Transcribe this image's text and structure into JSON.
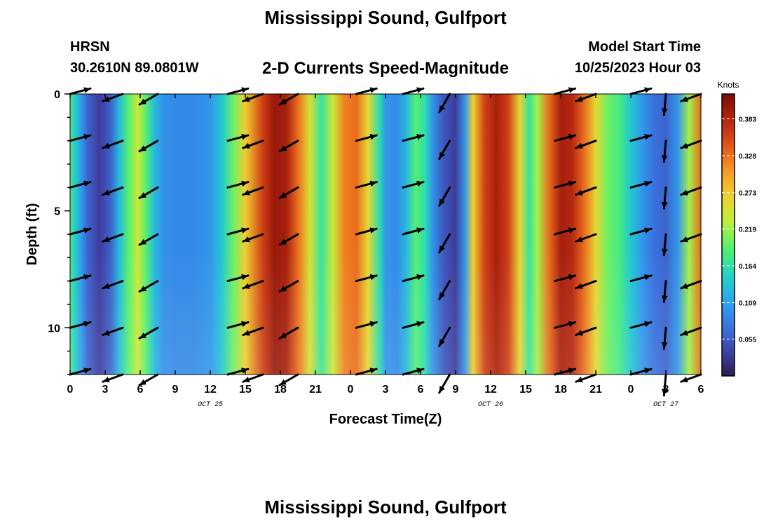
{
  "header": {
    "title": "Mississippi Sound, Gulfport",
    "station": "HRSN",
    "coords": "30.2610N  89.0801W",
    "plot_title": "2-D Currents Speed-Magnitude",
    "model_label": "Model Start Time",
    "model_time": "10/25/2023 Hour 03"
  },
  "footer": {
    "title": "Mississippi Sound, Gulfport"
  },
  "chart_data": {
    "type": "heatmap",
    "title": "2-D Currents Speed-Magnitude",
    "xlabel": "Forecast Time(Z)",
    "ylabel": "Depth (ft)",
    "x_ticks": [
      "0",
      "3",
      "6",
      "9",
      "12",
      "15",
      "18",
      "21",
      "0",
      "3",
      "6",
      "9",
      "12",
      "15",
      "18",
      "21",
      "0",
      "3",
      "6"
    ],
    "x_range_hours": [
      0,
      54
    ],
    "date_labels": [
      {
        "text": "OCT 25",
        "hour": 12
      },
      {
        "text": "OCT 26",
        "hour": 36
      },
      {
        "text": "OCT 27",
        "hour": 51
      }
    ],
    "y_ticks": [
      0,
      5,
      10
    ],
    "y_range_ft": [
      0,
      12
    ],
    "y_reversed": true,
    "colorbar": {
      "label": "Knots",
      "ticks": [
        "0.055",
        "0.109",
        "0.164",
        "0.219",
        "0.273",
        "0.328",
        "0.383"
      ],
      "range": [
        0.0,
        0.42
      ]
    },
    "speed_by_hour_knots": [
      {
        "hour": 0,
        "speed": 0.18
      },
      {
        "hour": 0.5,
        "speed": 0.14
      },
      {
        "hour": 1,
        "speed": 0.1
      },
      {
        "hour": 1.5,
        "speed": 0.06
      },
      {
        "hour": 2.5,
        "speed": 0.03
      },
      {
        "hour": 3.5,
        "speed": 0.06
      },
      {
        "hour": 4.2,
        "speed": 0.13
      },
      {
        "hour": 5,
        "speed": 0.19
      },
      {
        "hour": 5.8,
        "speed": 0.24
      },
      {
        "hour": 6.5,
        "speed": 0.19
      },
      {
        "hour": 7.2,
        "speed": 0.13
      },
      {
        "hour": 8,
        "speed": 0.095
      },
      {
        "hour": 9,
        "speed": 0.09
      },
      {
        "hour": 10.5,
        "speed": 0.09
      },
      {
        "hour": 12,
        "speed": 0.1
      },
      {
        "hour": 13,
        "speed": 0.14
      },
      {
        "hour": 14,
        "speed": 0.2
      },
      {
        "hour": 15,
        "speed": 0.27
      },
      {
        "hour": 16.5,
        "speed": 0.36
      },
      {
        "hour": 17.5,
        "speed": 0.4
      },
      {
        "hour": 18.5,
        "speed": 0.39
      },
      {
        "hour": 19.5,
        "speed": 0.33
      },
      {
        "hour": 20.5,
        "speed": 0.25
      },
      {
        "hour": 21.5,
        "speed": 0.17
      },
      {
        "hour": 22.5,
        "speed": 0.24
      },
      {
        "hour": 23.5,
        "speed": 0.32
      },
      {
        "hour": 24.5,
        "speed": 0.33
      },
      {
        "hour": 25.5,
        "speed": 0.26
      },
      {
        "hour": 26.5,
        "speed": 0.16
      },
      {
        "hour": 27,
        "speed": 0.1
      },
      {
        "hour": 28,
        "speed": 0.09
      },
      {
        "hour": 28.8,
        "speed": 0.13
      },
      {
        "hour": 29.6,
        "speed": 0.19
      },
      {
        "hour": 30.4,
        "speed": 0.16
      },
      {
        "hour": 31,
        "speed": 0.1
      },
      {
        "hour": 32,
        "speed": 0.05
      },
      {
        "hour": 33,
        "speed": 0.03
      },
      {
        "hour": 33.8,
        "speed": 0.1
      },
      {
        "hour": 34.5,
        "speed": 0.27
      },
      {
        "hour": 35.5,
        "speed": 0.36
      },
      {
        "hour": 36.5,
        "speed": 0.39
      },
      {
        "hour": 37.5,
        "speed": 0.36
      },
      {
        "hour": 38.5,
        "speed": 0.26
      },
      {
        "hour": 39.3,
        "speed": 0.17
      },
      {
        "hour": 40,
        "speed": 0.22
      },
      {
        "hour": 41,
        "speed": 0.33
      },
      {
        "hour": 42,
        "speed": 0.39
      },
      {
        "hour": 43,
        "speed": 0.38
      },
      {
        "hour": 44,
        "speed": 0.33
      },
      {
        "hour": 45,
        "speed": 0.26
      },
      {
        "hour": 46,
        "speed": 0.2
      },
      {
        "hour": 47,
        "speed": 0.18
      },
      {
        "hour": 48,
        "speed": 0.14
      },
      {
        "hour": 49,
        "speed": 0.1
      },
      {
        "hour": 50,
        "speed": 0.07
      },
      {
        "hour": 51,
        "speed": 0.06
      },
      {
        "hour": 52,
        "speed": 0.1
      },
      {
        "hour": 53,
        "speed": 0.22
      },
      {
        "hour": 54,
        "speed": 0.33
      }
    ],
    "arrow_hours": [
      0,
      4.5,
      7.5,
      13.5,
      16.5,
      19.5,
      24.5,
      28.5,
      32.5,
      41.5,
      45,
      48,
      51,
      54
    ],
    "arrow_depths_ft": [
      0,
      2,
      4,
      6,
      8,
      10,
      12
    ],
    "arrow_directions_deg": [
      15,
      200,
      210,
      15,
      200,
      210,
      15,
      15,
      240,
      15,
      200,
      15,
      265,
      200
    ]
  }
}
